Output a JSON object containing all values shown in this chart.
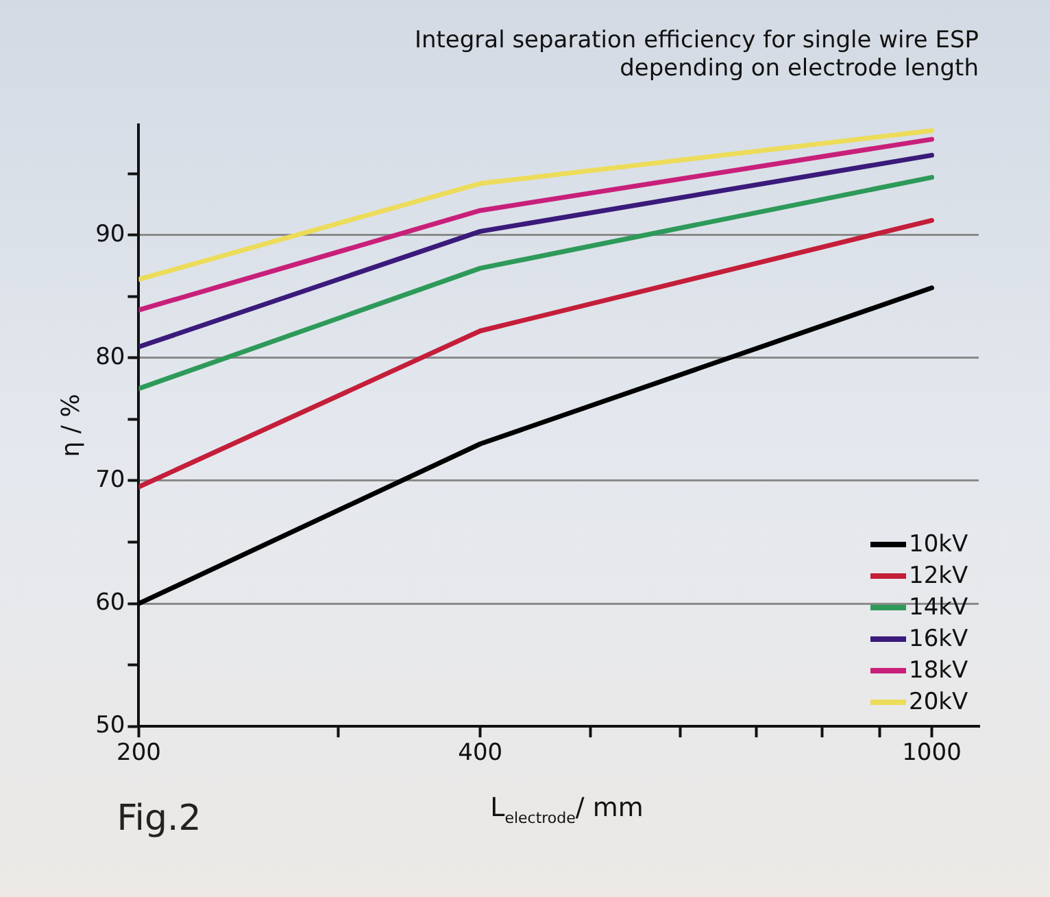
{
  "chart_data": {
    "type": "line",
    "title": "Integral separation efficiency for single wire ESP\ndepending on electrode length",
    "xlabel": "L$_{electrode}$/ mm",
    "ylabel": "η / %",
    "annotations": [
      "Fig.2"
    ],
    "x": [
      200,
      400,
      1000
    ],
    "log": "x",
    "xlim": [
      200,
      1100
    ],
    "xticks": [
      {
        "value": 200,
        "label": "200"
      },
      {
        "value": 300,
        "label": null
      },
      {
        "value": 400,
        "label": "400"
      },
      {
        "value": 500,
        "label": null
      },
      {
        "value": 600,
        "label": null
      },
      {
        "value": 700,
        "label": null
      },
      {
        "value": 800,
        "label": null
      },
      {
        "value": 900,
        "label": null
      },
      {
        "value": 1000,
        "label": "1000"
      }
    ],
    "ylim": [
      50,
      99
    ],
    "yticks": [
      50,
      {
        "value": 55,
        "label": null
      },
      60,
      {
        "value": 65,
        "label": null
      },
      70,
      {
        "value": 75,
        "label": null
      },
      80,
      {
        "value": 85,
        "label": null
      },
      90,
      {
        "value": 95,
        "label": null
      }
    ],
    "grid": "y",
    "legend": "bottom right",
    "marker": "none",
    "line_style": "solid",
    "series": [
      {
        "name": "10kV",
        "color": "#000000",
        "values": [
          60,
          73,
          85.7
        ]
      },
      {
        "name": "12kV",
        "color": "#c41e3a",
        "values": [
          69.5,
          82.2,
          91.2
        ]
      },
      {
        "name": "14kV",
        "color": "#2e9a5a",
        "values": [
          77.5,
          87.3,
          94.7
        ]
      },
      {
        "name": "16kV",
        "color": "#3a1a7a",
        "values": [
          80.9,
          90.3,
          96.5
        ]
      },
      {
        "name": "18kV",
        "color": "#c8207a",
        "values": [
          83.9,
          92,
          97.8
        ]
      },
      {
        "name": "20kV",
        "color": "#ecdc5a",
        "values": [
          86.4,
          94.2,
          98.5
        ]
      }
    ]
  }
}
